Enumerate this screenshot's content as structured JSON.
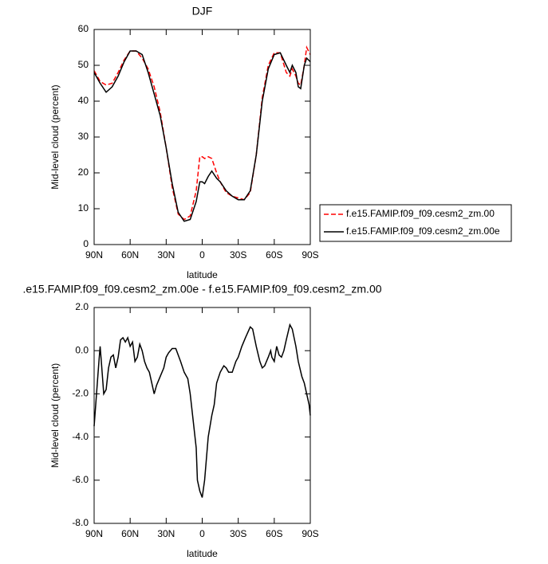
{
  "chart_data": [
    {
      "type": "line",
      "title": "DJF",
      "xlabel": "latitude",
      "ylabel": "Mid-level cloud (percent)",
      "x": [
        90,
        85,
        80,
        75,
        70,
        65,
        60,
        55,
        50,
        45,
        40,
        35,
        30,
        25,
        20,
        15,
        10,
        5,
        2,
        0,
        -2,
        -5,
        -8,
        -12,
        -15,
        -20,
        -25,
        -30,
        -35,
        -40,
        -45,
        -50,
        -55,
        -60,
        -65,
        -70,
        -73,
        -75,
        -78,
        -80,
        -82,
        -85,
        -87,
        -90
      ],
      "xlim": [
        90,
        -90
      ],
      "xticks": [
        {
          "value": 90,
          "label": "90N"
        },
        {
          "value": 60,
          "label": "60N"
        },
        {
          "value": 30,
          "label": "30N"
        },
        0,
        {
          "value": -30,
          "label": "30S"
        },
        {
          "value": -60,
          "label": "60S"
        },
        {
          "value": -90,
          "label": "90S"
        }
      ],
      "ylim": [
        0,
        60
      ],
      "yticks": [
        0,
        10,
        20,
        30,
        40,
        50,
        60
      ],
      "series": [
        {
          "name": "f.e15.FAMIP.f09_f09.cesm2_zm.00",
          "color": "#ff0000",
          "dash": true,
          "values": [
            48.5,
            45.5,
            44.5,
            45,
            48,
            51.5,
            54,
            54,
            52,
            49,
            44,
            37,
            27,
            16,
            8.5,
            7,
            8,
            15,
            24.5,
            24.5,
            24,
            24.5,
            24,
            20,
            17.5,
            14.5,
            13.5,
            13,
            12.5,
            14.5,
            25,
            41,
            50,
            53.5,
            53.5,
            48,
            47,
            49,
            47,
            45,
            44.5,
            50,
            55,
            53
          ]
        },
        {
          "name": "f.e15.FAMIP.f09_f09.cesm2_zm.00e",
          "color": "#000000",
          "dash": false,
          "values": [
            48,
            45,
            42.5,
            44,
            47,
            51,
            54,
            54,
            53,
            48,
            42,
            36,
            27,
            17,
            9,
            6.5,
            7,
            12,
            17.5,
            17.5,
            17,
            19,
            20.5,
            18.5,
            17.5,
            15,
            13.5,
            12.5,
            12.5,
            15,
            25,
            40,
            49,
            53,
            53.5,
            50,
            48,
            50,
            48,
            44,
            43.5,
            50,
            52,
            51
          ]
        }
      ]
    },
    {
      "type": "line",
      "title": ".e15.FAMIP.f09_f09.cesm2_zm.00e - f.e15.FAMIP.f09_f09.cesm2_zm.00",
      "xlabel": "latitude",
      "ylabel": "Mid-level cloud (percent)",
      "x": [
        90,
        88,
        86,
        85,
        84,
        82,
        80,
        78,
        76,
        74,
        72,
        70,
        68,
        66,
        64,
        62,
        60,
        58,
        56,
        54,
        52,
        50,
        48,
        46,
        44,
        42,
        40,
        38,
        35,
        32,
        30,
        28,
        25,
        22,
        20,
        18,
        15,
        12,
        10,
        8,
        5,
        4,
        2,
        0,
        -2,
        -5,
        -8,
        -10,
        -12,
        -15,
        -18,
        -20,
        -22,
        -25,
        -28,
        -30,
        -33,
        -36,
        -40,
        -42,
        -45,
        -48,
        -50,
        -52,
        -55,
        -57,
        -58,
        -60,
        -62,
        -64,
        -66,
        -68,
        -70,
        -73,
        -75,
        -78,
        -80,
        -83,
        -85,
        -87,
        -89,
        -90
      ],
      "xlim": [
        90,
        -90
      ],
      "xticks": [
        {
          "value": 90,
          "label": "90N"
        },
        {
          "value": 60,
          "label": "60N"
        },
        {
          "value": 30,
          "label": "30N"
        },
        0,
        {
          "value": -30,
          "label": "30S"
        },
        {
          "value": -60,
          "label": "60S"
        },
        {
          "value": -90,
          "label": "90S"
        }
      ],
      "ylim": [
        -8,
        2
      ],
      "yticks": [
        {
          "value": -8,
          "label": "-8.0"
        },
        {
          "value": -6,
          "label": "-6.0"
        },
        {
          "value": -4,
          "label": "-4.0"
        },
        {
          "value": -2,
          "label": "-2.0"
        },
        {
          "value": 0,
          "label": "0.0"
        },
        {
          "value": 2,
          "label": "2.0"
        }
      ],
      "series": [
        {
          "color": "#000000",
          "dash": false,
          "values": [
            -3.5,
            -2,
            -0.5,
            0.2,
            -0.5,
            -2.0,
            -1.8,
            -0.8,
            -0.3,
            -0.2,
            -0.8,
            -0.3,
            0.5,
            0.6,
            0.4,
            0.6,
            0.2,
            0.4,
            -0.5,
            -0.3,
            0.3,
            0,
            -0.5,
            -0.8,
            -1.0,
            -1.5,
            -2.0,
            -1.6,
            -1.2,
            -0.8,
            -0.3,
            -0.1,
            0.1,
            0.1,
            -0.2,
            -0.5,
            -1.0,
            -1.3,
            -2.0,
            -3,
            -4.5,
            -6,
            -6.5,
            -6.8,
            -6,
            -4,
            -3,
            -2.5,
            -1.5,
            -1.0,
            -0.7,
            -0.8,
            -1.0,
            -1.0,
            -0.5,
            -0.3,
            0.2,
            0.6,
            1.1,
            1.0,
            0.2,
            -0.5,
            -0.8,
            -0.7,
            -0.3,
            0,
            -0.3,
            -0.5,
            0.2,
            -0.2,
            -0.3,
            0,
            0.5,
            1.2,
            1.0,
            0.2,
            -0.5,
            -1.2,
            -1.5,
            -2.0,
            -2.5,
            -3
          ]
        }
      ]
    }
  ]
}
